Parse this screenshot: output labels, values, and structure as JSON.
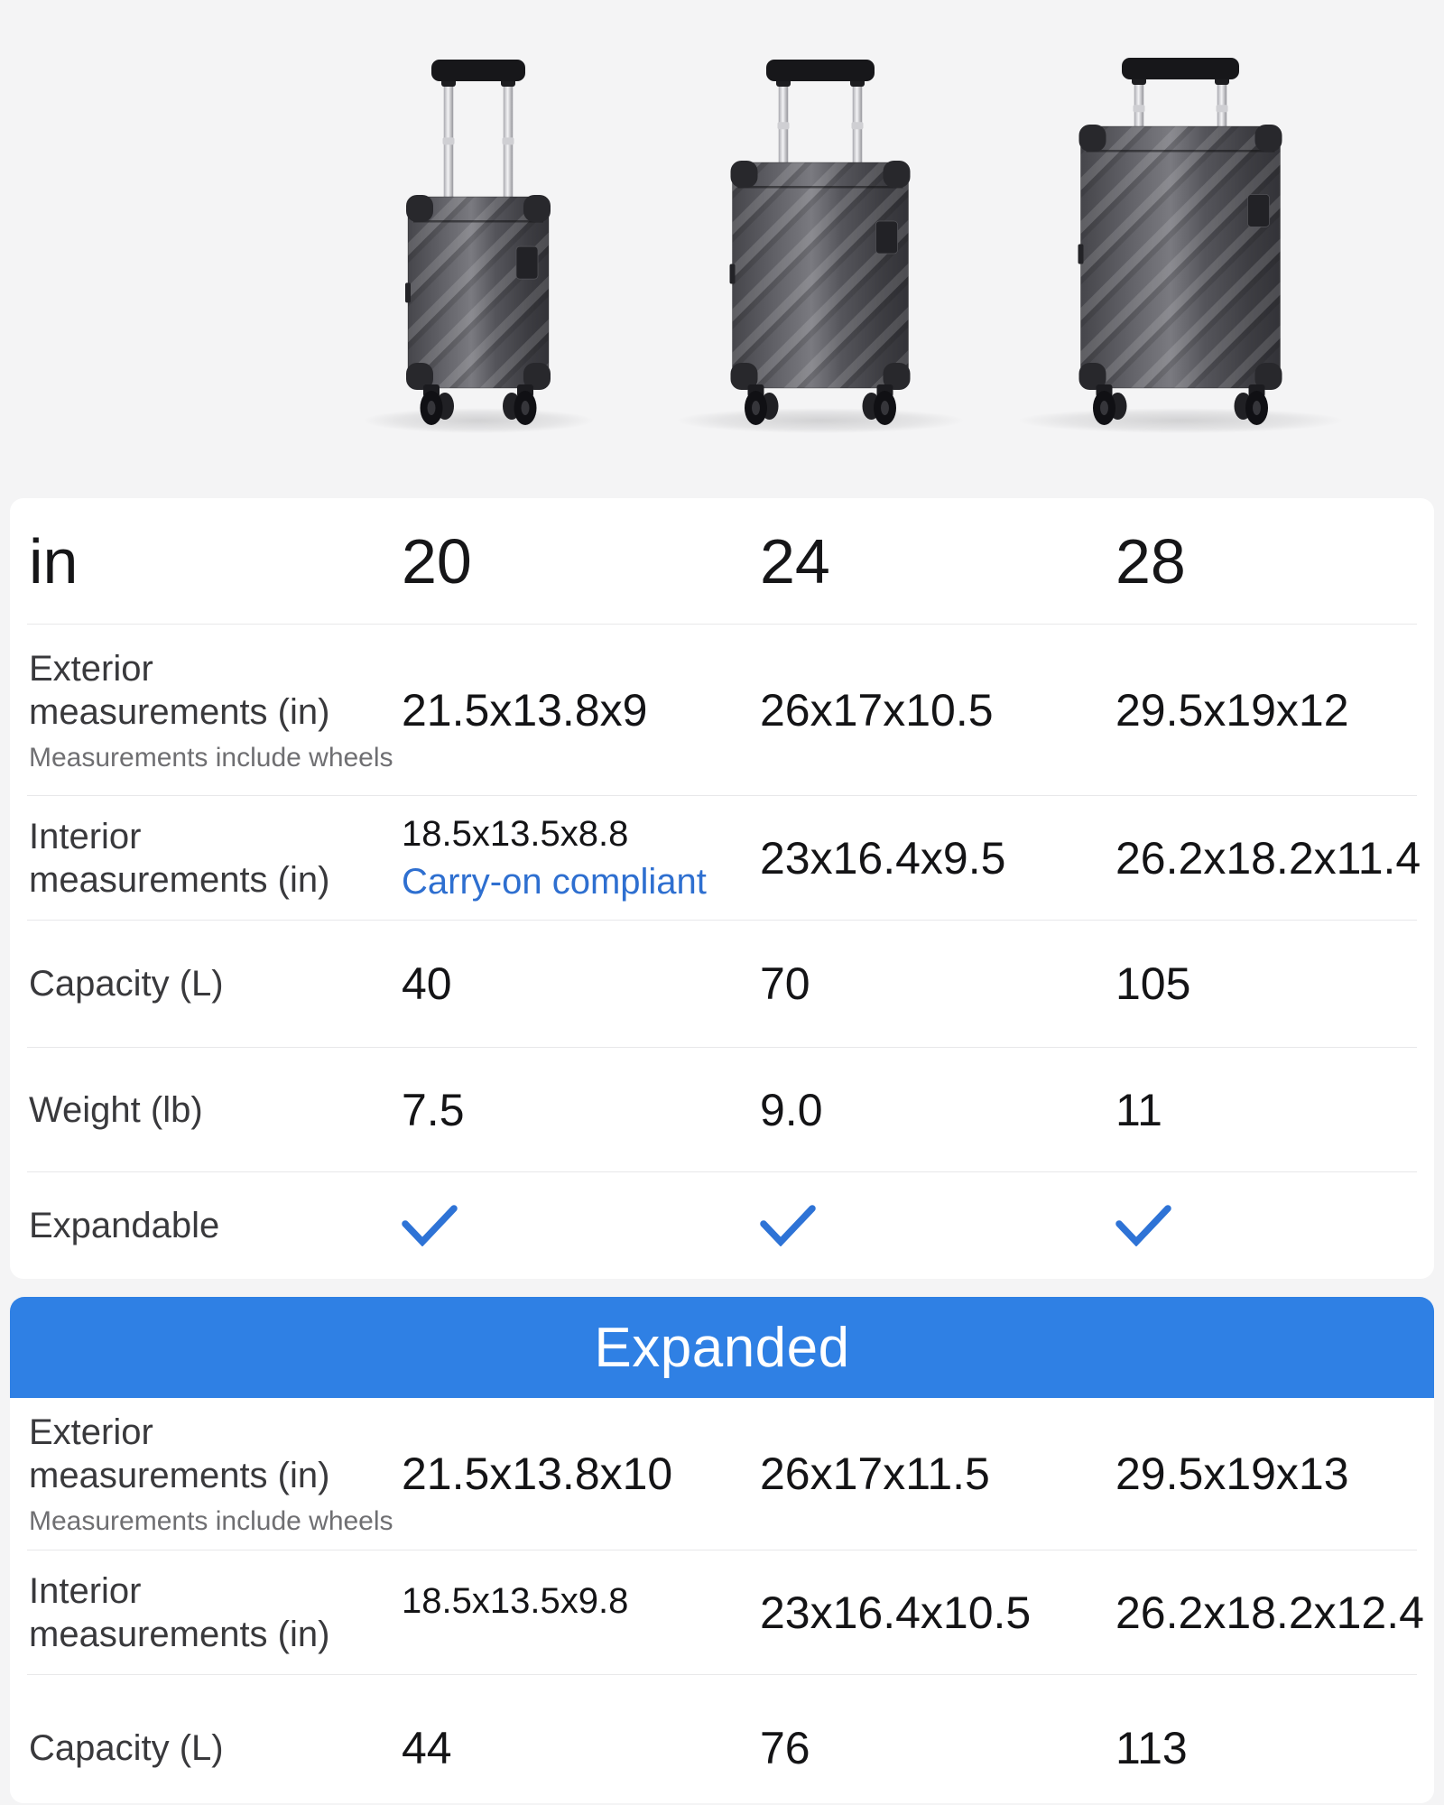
{
  "colors": {
    "banner_blue": "#2F80E4",
    "check_blue": "#2E73D6",
    "link_blue": "#2E6FD0"
  },
  "hero": {
    "suitcase_sizes": [
      "20",
      "24",
      "28"
    ]
  },
  "table": {
    "unit_header": "in",
    "columns": [
      "20",
      "24",
      "28"
    ],
    "rows": {
      "exterior": {
        "label": "Exterior measurements (in)",
        "note": "Measurements include wheels",
        "values": [
          "21.5x13.8x9",
          "26x17x10.5",
          "29.5x19x12"
        ]
      },
      "interior": {
        "label": "Interior measurements (in)",
        "values": [
          "18.5x13.5x8.8",
          "23x16.4x9.5",
          "26.2x18.2x11.4"
        ],
        "carry_on_note": "Carry-on compliant"
      },
      "capacity": {
        "label": "Capacity (L)",
        "values": [
          "40",
          "70",
          "105"
        ]
      },
      "weight": {
        "label": "Weight (lb)",
        "values": [
          "7.5",
          "9.0",
          "11"
        ]
      },
      "expandable": {
        "label": "Expandable",
        "checked": [
          true,
          true,
          true
        ]
      }
    }
  },
  "expanded": {
    "banner_label": "Expanded",
    "rows": {
      "exterior": {
        "label": "Exterior measurements (in)",
        "note": "Measurements include wheels",
        "values": [
          "21.5x13.8x10",
          "26x17x11.5",
          "29.5x19x13"
        ]
      },
      "interior": {
        "label": "Interior measurements (in)",
        "values": [
          "18.5x13.5x9.8",
          "23x16.4x10.5",
          "26.2x18.2x12.4"
        ]
      },
      "capacity": {
        "label": "Capacity (L)",
        "values": [
          "44",
          "76",
          "113"
        ]
      }
    }
  }
}
